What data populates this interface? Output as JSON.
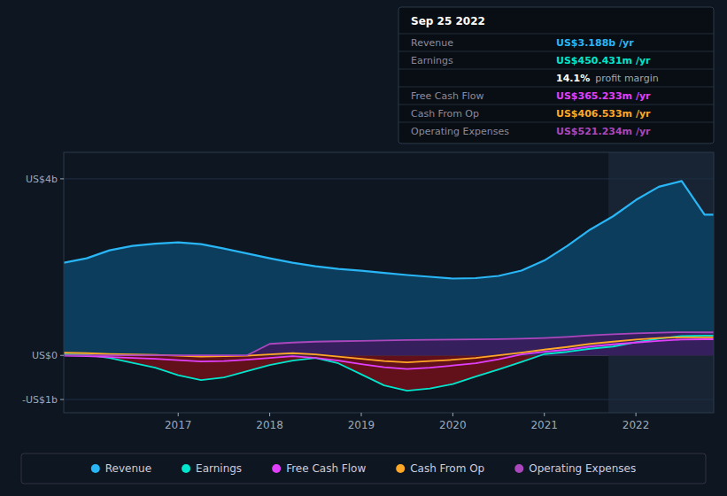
{
  "chart_data": {
    "type": "line",
    "x": [
      2015.75,
      2016.0,
      2016.25,
      2016.5,
      2016.75,
      2017.0,
      2017.25,
      2017.5,
      2017.75,
      2018.0,
      2018.25,
      2018.5,
      2018.75,
      2019.0,
      2019.25,
      2019.5,
      2019.75,
      2020.0,
      2020.25,
      2020.5,
      2020.75,
      2021.0,
      2021.25,
      2021.5,
      2021.75,
      2022.0,
      2022.25,
      2022.5,
      2022.75,
      2022.85
    ],
    "series": [
      {
        "name": "Revenue",
        "type": "area",
        "color": "#29b6f6",
        "fill_color": "#0d3d5c",
        "values": [
          2100000000,
          2200000000,
          2380000000,
          2480000000,
          2530000000,
          2560000000,
          2520000000,
          2420000000,
          2310000000,
          2200000000,
          2100000000,
          2020000000,
          1960000000,
          1920000000,
          1870000000,
          1820000000,
          1780000000,
          1740000000,
          1750000000,
          1800000000,
          1920000000,
          2150000000,
          2480000000,
          2850000000,
          3150000000,
          3520000000,
          3820000000,
          3950000000,
          3188000000,
          3188000000
        ]
      },
      {
        "name": "Earnings",
        "type": "line",
        "color": "#00e5cc",
        "negative_fill_color": "#6b0f1a",
        "values": [
          20000000,
          10000000,
          -60000000,
          -170000000,
          -280000000,
          -450000000,
          -560000000,
          -500000000,
          -360000000,
          -220000000,
          -120000000,
          -60000000,
          -180000000,
          -430000000,
          -680000000,
          -800000000,
          -750000000,
          -650000000,
          -480000000,
          -320000000,
          -150000000,
          30000000,
          80000000,
          150000000,
          200000000,
          300000000,
          380000000,
          440000000,
          450431000,
          450431000
        ]
      },
      {
        "name": "Free Cash Flow",
        "type": "line",
        "color": "#e040fb",
        "values": [
          -10000000,
          -20000000,
          -40000000,
          -60000000,
          -80000000,
          -110000000,
          -140000000,
          -130000000,
          -100000000,
          -60000000,
          -20000000,
          -60000000,
          -120000000,
          -200000000,
          -270000000,
          -310000000,
          -280000000,
          -230000000,
          -180000000,
          -90000000,
          20000000,
          80000000,
          130000000,
          200000000,
          250000000,
          290000000,
          330000000,
          360000000,
          365233000,
          365233000
        ]
      },
      {
        "name": "Cash From Op",
        "type": "line",
        "color": "#ffa726",
        "values": [
          60000000,
          50000000,
          30000000,
          20000000,
          10000000,
          -10000000,
          -30000000,
          -20000000,
          -10000000,
          20000000,
          50000000,
          20000000,
          -30000000,
          -80000000,
          -130000000,
          -160000000,
          -130000000,
          -100000000,
          -60000000,
          0,
          60000000,
          130000000,
          190000000,
          260000000,
          310000000,
          360000000,
          395000000,
          410000000,
          406533000,
          406533000
        ]
      },
      {
        "name": "Operating Expenses",
        "type": "area",
        "color": "#ab47bc",
        "fill_color": "#3d1a5c",
        "values": [
          0,
          0,
          0,
          0,
          0,
          0,
          0,
          0,
          0,
          260000000,
          290000000,
          310000000,
          320000000,
          330000000,
          340000000,
          350000000,
          355000000,
          360000000,
          365000000,
          370000000,
          380000000,
          395000000,
          420000000,
          455000000,
          480000000,
          500000000,
          515000000,
          525000000,
          521234000,
          521234000
        ]
      }
    ],
    "xlim": [
      2015.75,
      2022.85
    ],
    "ylim": [
      -1300000000,
      4600000000
    ],
    "xticks": [
      2017,
      2018,
      2019,
      2020,
      2021,
      2022
    ],
    "yticks": [
      {
        "value": 4000000000,
        "label": "US$4b"
      },
      {
        "value": 0,
        "label": "US$0"
      },
      {
        "value": -1000000000,
        "label": "-US$1b"
      }
    ],
    "grid": true,
    "legend": "bottom",
    "highlight_x": [
      2021.7,
      2022.85
    ],
    "tooltip": {
      "title": "Sep 25 2022",
      "rows": [
        {
          "label": "Revenue",
          "value": "US$3.188b /yr",
          "color": "#29b6f6"
        },
        {
          "label": "Earnings",
          "value": "US$450.431m /yr",
          "color": "#00e5cc"
        },
        {
          "value": "14.1%",
          "suffix": "profit margin"
        },
        {
          "label": "Free Cash Flow",
          "value": "US$365.233m /yr",
          "color": "#e040fb"
        },
        {
          "label": "Cash From Op",
          "value": "US$406.533m /yr",
          "color": "#ffa726"
        },
        {
          "label": "Operating Expenses",
          "value": "US$521.234m /yr",
          "color": "#ab47bc"
        }
      ]
    }
  }
}
